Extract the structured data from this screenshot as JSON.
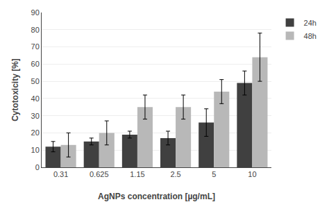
{
  "chart_data": {
    "type": "bar",
    "categories": [
      "0.31",
      "0.625",
      "1.15",
      "2.5",
      "5",
      "10"
    ],
    "series": [
      {
        "name": "24h",
        "color": "#404040",
        "values": [
          12,
          15,
          19,
          17,
          26,
          49
        ],
        "errors": [
          3,
          2,
          2,
          4,
          8,
          7
        ]
      },
      {
        "name": "48h",
        "color": "#b8b8b8",
        "values": [
          13,
          20,
          35,
          35,
          44,
          64
        ],
        "errors": [
          7,
          7,
          7,
          7,
          7,
          14
        ]
      }
    ],
    "xlabel": "AgNPs concentration [µg/mL]",
    "ylabel": "Cytotoxicity [%]",
    "ylim": [
      0,
      90
    ],
    "yticks": [
      0,
      10,
      20,
      30,
      40,
      50,
      60,
      70,
      80,
      90
    ],
    "grid": true,
    "legend": "right"
  }
}
